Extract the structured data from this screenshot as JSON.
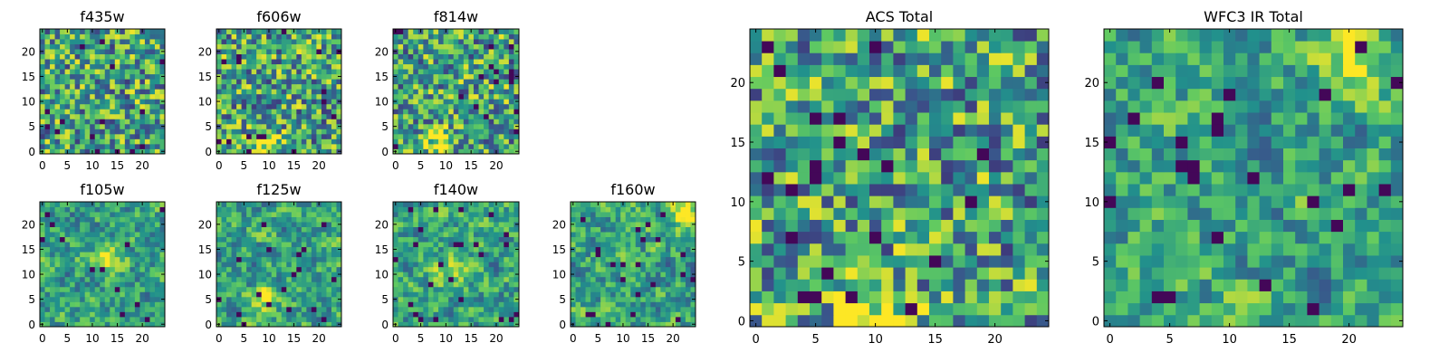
{
  "chart_data": [
    {
      "type": "heatmap",
      "title": "f435w",
      "xticks": [
        0,
        5,
        10,
        15,
        20
      ],
      "yticks": [
        0,
        5,
        10,
        15,
        20
      ],
      "xlim": [
        -0.5,
        24.5
      ],
      "ylim": [
        -0.5,
        24.5
      ],
      "grid_size": 25,
      "colormap": "viridis",
      "pattern": "noise",
      "bright_spot": null
    },
    {
      "type": "heatmap",
      "title": "f606w",
      "xticks": [
        0,
        5,
        10,
        15,
        20
      ],
      "yticks": [
        0,
        5,
        10,
        15,
        20
      ],
      "xlim": [
        -0.5,
        24.5
      ],
      "ylim": [
        -0.5,
        24.5
      ],
      "grid_size": 25,
      "colormap": "viridis",
      "pattern": "noise",
      "bright_spot": [
        9,
        2
      ]
    },
    {
      "type": "heatmap",
      "title": "f814w",
      "xticks": [
        0,
        5,
        10,
        15,
        20
      ],
      "yticks": [
        0,
        5,
        10,
        15,
        20
      ],
      "xlim": [
        -0.5,
        24.5
      ],
      "ylim": [
        -0.5,
        24.5
      ],
      "grid_size": 25,
      "colormap": "viridis",
      "pattern": "noise",
      "bright_spot": [
        9,
        2
      ]
    },
    {
      "type": "heatmap",
      "title": "f105w",
      "xticks": [
        0,
        5,
        10,
        15,
        20
      ],
      "yticks": [
        0,
        5,
        10,
        15,
        20
      ],
      "xlim": [
        -0.5,
        24.5
      ],
      "ylim": [
        -0.5,
        24.5
      ],
      "grid_size": 25,
      "colormap": "viridis",
      "pattern": "smooth",
      "bright_spot": [
        13,
        14
      ]
    },
    {
      "type": "heatmap",
      "title": "f125w",
      "xticks": [
        0,
        5,
        10,
        15,
        20
      ],
      "yticks": [
        0,
        5,
        10,
        15,
        20
      ],
      "xlim": [
        -0.5,
        24.5
      ],
      "ylim": [
        -0.5,
        24.5
      ],
      "grid_size": 25,
      "colormap": "viridis",
      "pattern": "smooth",
      "bright_spot": [
        9,
        5
      ]
    },
    {
      "type": "heatmap",
      "title": "f140w",
      "xticks": [
        0,
        5,
        10,
        15,
        20
      ],
      "yticks": [
        0,
        5,
        10,
        15,
        20
      ],
      "xlim": [
        -0.5,
        24.5
      ],
      "ylim": [
        -0.5,
        24.5
      ],
      "grid_size": 25,
      "colormap": "viridis",
      "pattern": "smooth",
      "bright_spot": [
        11,
        10
      ]
    },
    {
      "type": "heatmap",
      "title": "f160w",
      "xticks": [
        0,
        5,
        10,
        15,
        20
      ],
      "yticks": [
        0,
        5,
        10,
        15,
        20
      ],
      "xlim": [
        -0.5,
        24.5
      ],
      "ylim": [
        -0.5,
        24.5
      ],
      "grid_size": 25,
      "colormap": "viridis",
      "pattern": "smooth",
      "bright_spot": [
        22,
        22
      ]
    },
    {
      "type": "heatmap",
      "title": "ACS Total",
      "xticks": [
        0,
        5,
        10,
        15,
        20
      ],
      "yticks": [
        0,
        5,
        10,
        15,
        20
      ],
      "xlim": [
        -0.5,
        24.5
      ],
      "ylim": [
        -0.5,
        24.5
      ],
      "grid_size": 25,
      "colormap": "viridis",
      "pattern": "noise",
      "bright_spot": [
        10,
        1
      ]
    },
    {
      "type": "heatmap",
      "title": "WFC3 IR Total",
      "xticks": [
        0,
        5,
        10,
        15,
        20
      ],
      "yticks": [
        0,
        5,
        10,
        15,
        20
      ],
      "xlim": [
        -0.5,
        24.5
      ],
      "ylim": [
        -0.5,
        24.5
      ],
      "grid_size": 25,
      "colormap": "viridis",
      "pattern": "smooth",
      "bright_spot": [
        21,
        23
      ]
    }
  ]
}
